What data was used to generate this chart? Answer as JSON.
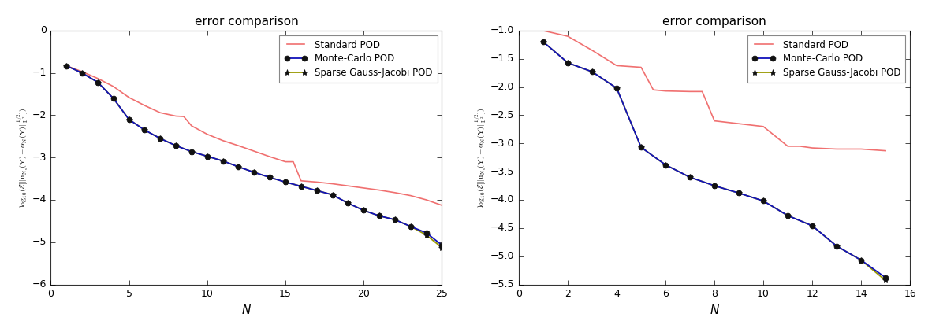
{
  "title": "error comparison",
  "xlabel": "N",
  "left": {
    "xlim": [
      0,
      25
    ],
    "ylim": [
      -6,
      0
    ],
    "xticks": [
      0,
      5,
      10,
      15,
      20,
      25
    ],
    "yticks": [
      0,
      -1,
      -2,
      -3,
      -4,
      -5,
      -6
    ],
    "standard_x": [
      1,
      2,
      3,
      4,
      5,
      6,
      7,
      8,
      8.5,
      9,
      10,
      11,
      12,
      13,
      14,
      15,
      15.5,
      16,
      17,
      18,
      19,
      20,
      21,
      22,
      23,
      24,
      25
    ],
    "standard_y": [
      -0.83,
      -0.97,
      -1.13,
      -1.32,
      -1.58,
      -1.77,
      -1.94,
      -2.02,
      -2.03,
      -2.25,
      -2.45,
      -2.6,
      -2.72,
      -2.85,
      -2.98,
      -3.1,
      -3.1,
      -3.55,
      -3.58,
      -3.62,
      -3.67,
      -3.72,
      -3.77,
      -3.83,
      -3.9,
      -4.0,
      -4.13
    ],
    "mc_x": [
      1,
      2,
      3,
      4,
      5,
      6,
      7,
      8,
      9,
      10,
      11,
      12,
      13,
      14,
      15,
      16,
      17,
      18,
      19,
      20,
      21,
      22,
      23,
      24,
      25
    ],
    "mc_y": [
      -0.83,
      -1.0,
      -1.22,
      -1.6,
      -2.1,
      -2.35,
      -2.55,
      -2.72,
      -2.86,
      -2.97,
      -3.08,
      -3.22,
      -3.35,
      -3.47,
      -3.58,
      -3.68,
      -3.78,
      -3.88,
      -4.08,
      -4.25,
      -4.38,
      -4.47,
      -4.63,
      -4.78,
      -5.07
    ],
    "sgj_x": [
      1,
      2,
      3,
      4,
      5,
      6,
      7,
      8,
      9,
      10,
      11,
      12,
      13,
      14,
      15,
      16,
      17,
      18,
      19,
      20,
      21,
      22,
      23,
      24,
      25
    ],
    "sgj_y": [
      -0.83,
      -1.0,
      -1.22,
      -1.6,
      -2.1,
      -2.35,
      -2.55,
      -2.72,
      -2.86,
      -2.97,
      -3.08,
      -3.22,
      -3.35,
      -3.47,
      -3.58,
      -3.68,
      -3.78,
      -3.88,
      -4.08,
      -4.25,
      -4.38,
      -4.47,
      -4.63,
      -4.83,
      -5.13
    ]
  },
  "right": {
    "xlim": [
      0,
      16
    ],
    "ylim": [
      -5.5,
      -1.0
    ],
    "xticks": [
      0,
      2,
      4,
      6,
      8,
      10,
      12,
      14,
      16
    ],
    "yticks": [
      -1.0,
      -1.5,
      -2.0,
      -2.5,
      -3.0,
      -3.5,
      -4.0,
      -4.5,
      -5.0,
      -5.5
    ],
    "standard_x": [
      1,
      2,
      3,
      4,
      5,
      5.5,
      6,
      7,
      7.5,
      8,
      9,
      10,
      11,
      11.5,
      12,
      13,
      14,
      15
    ],
    "standard_y": [
      -1.0,
      -1.1,
      -1.35,
      -1.62,
      -1.65,
      -2.05,
      -2.07,
      -2.08,
      -2.08,
      -2.6,
      -2.65,
      -2.7,
      -3.05,
      -3.05,
      -3.08,
      -3.1,
      -3.1,
      -3.13
    ],
    "mc_x": [
      1,
      2,
      3,
      4,
      5,
      6,
      7,
      8,
      9,
      10,
      11,
      12,
      13,
      14,
      15
    ],
    "mc_y": [
      -1.2,
      -1.57,
      -1.73,
      -2.02,
      -3.07,
      -3.38,
      -3.6,
      -3.75,
      -3.88,
      -4.02,
      -4.28,
      -4.46,
      -4.82,
      -5.07,
      -5.38
    ],
    "sgj_x": [
      1,
      2,
      3,
      4,
      5,
      6,
      7,
      8,
      9,
      10,
      11,
      12,
      13,
      14,
      15
    ],
    "sgj_y": [
      -1.2,
      -1.57,
      -1.73,
      -2.02,
      -3.07,
      -3.38,
      -3.6,
      -3.75,
      -3.88,
      -4.02,
      -4.28,
      -4.46,
      -4.82,
      -5.07,
      -5.43
    ]
  },
  "colors": {
    "standard": "#f07070",
    "mc": "#1111bb",
    "sgj": "#999900",
    "marker": "#111111"
  },
  "legend_labels": [
    "Standard POD",
    "Monte-Carlo POD",
    "Sparse Gauss-Jacobi POD"
  ],
  "background": "#ffffff"
}
